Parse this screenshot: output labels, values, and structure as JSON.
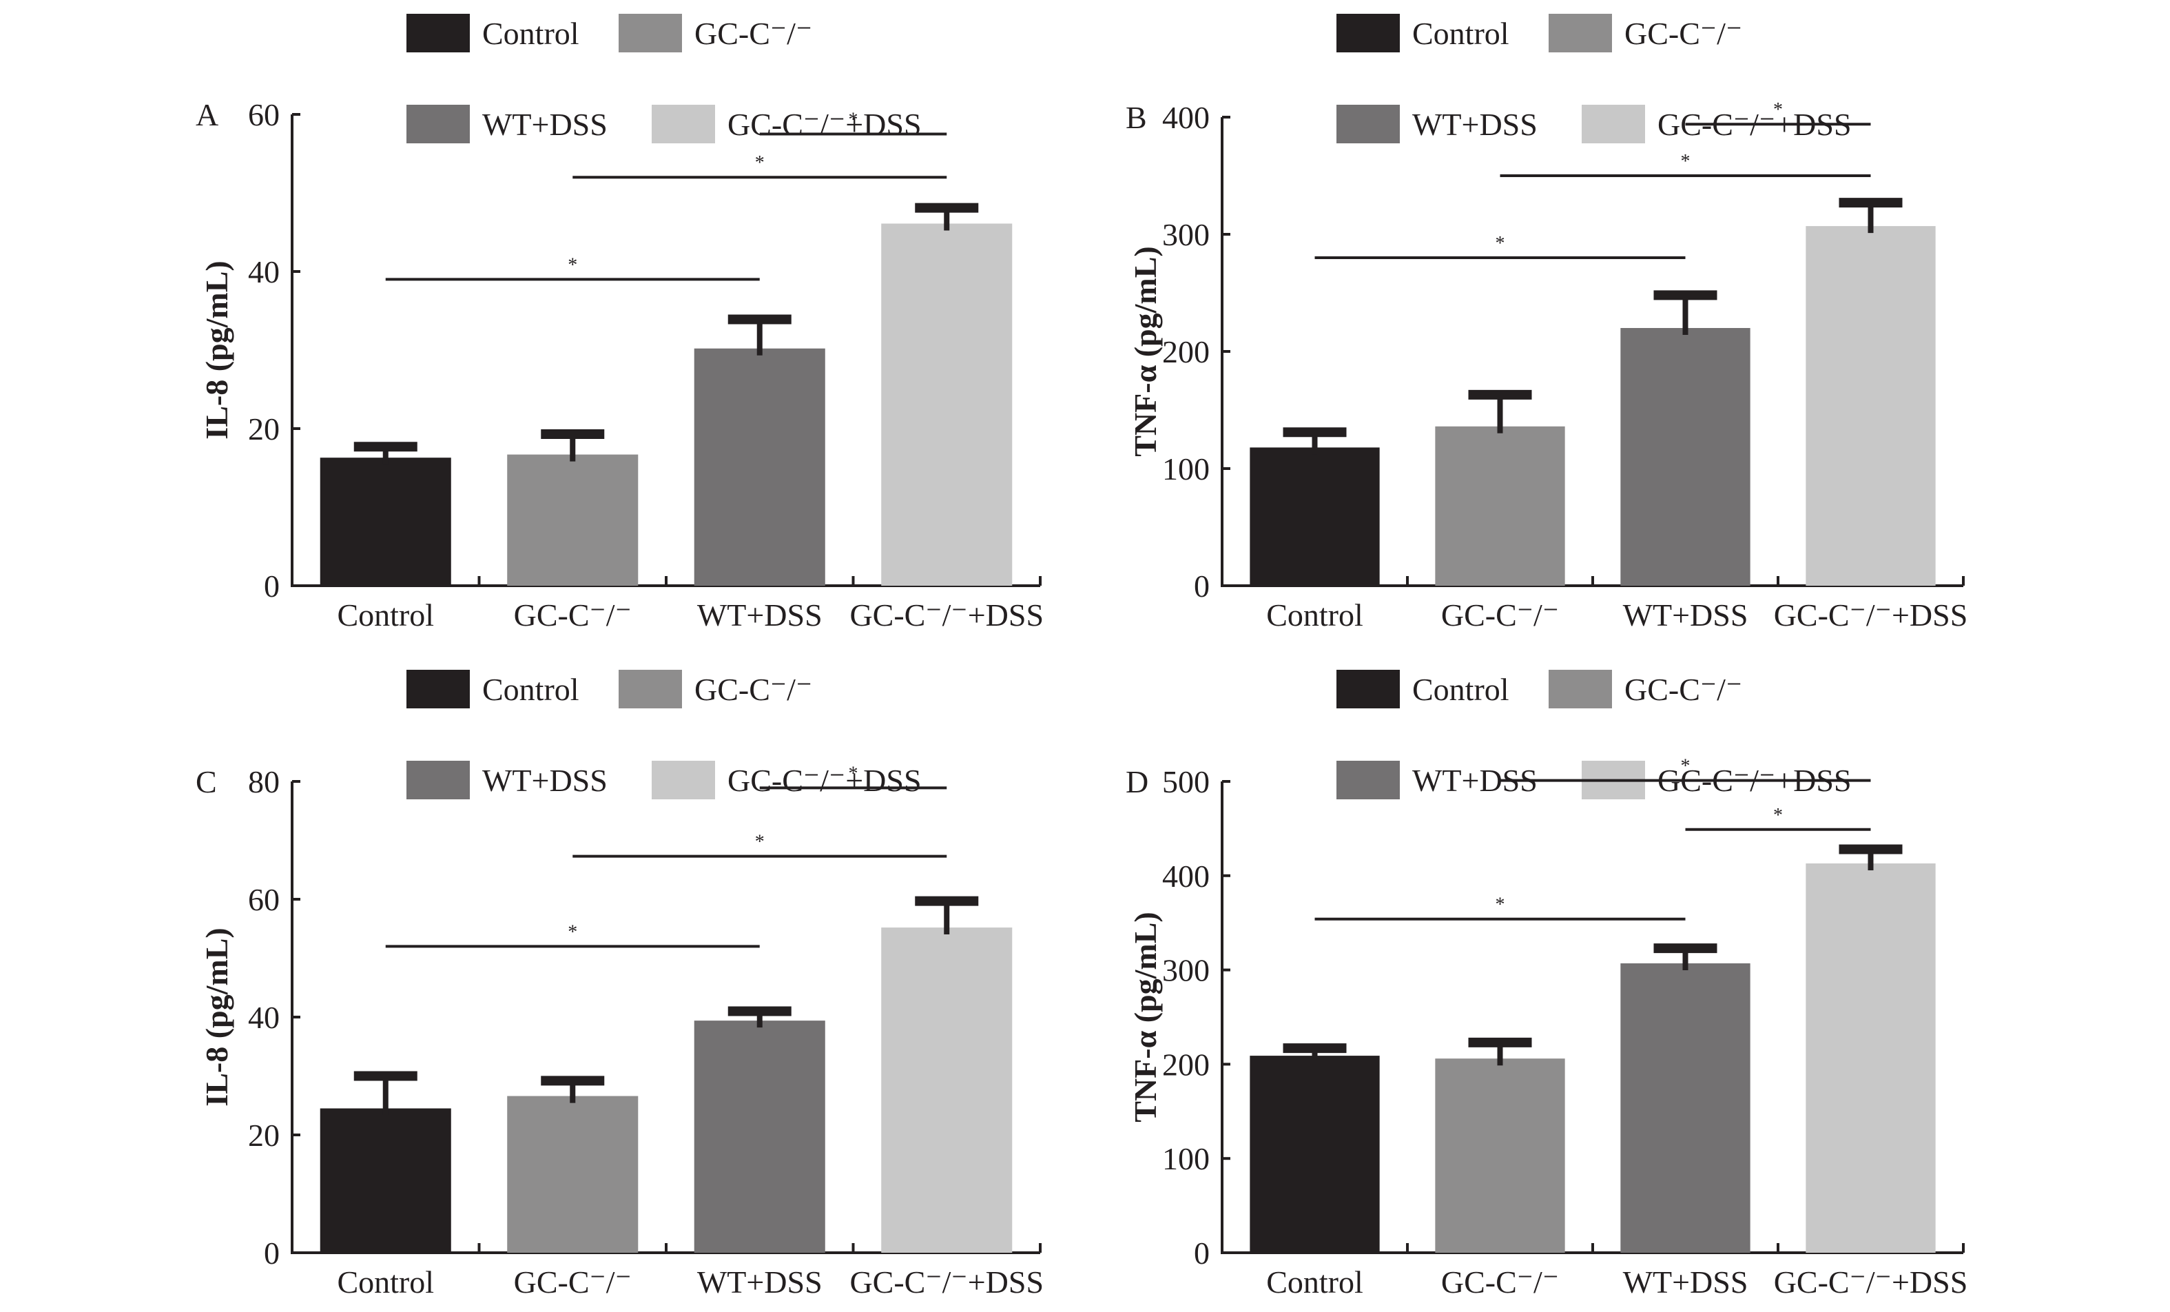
{
  "chart_data": [
    {
      "type": "bar",
      "panel": "A",
      "title": "",
      "xlabel": "",
      "ylabel": "IL-8 (pg/mL)",
      "ylim": [
        0,
        60
      ],
      "yticks": [
        0,
        20,
        40,
        60
      ],
      "grid": false,
      "legend_position": "top",
      "categories": [
        "Control",
        "GC-C⁻/⁻",
        "WT+DSS",
        "GC-C⁻/⁻+DSS"
      ],
      "values": [
        16.3,
        16.7,
        30.2,
        46.1
      ],
      "error": [
        1.4,
        2.6,
        3.7,
        2.0
      ],
      "significance": [
        {
          "from": 0,
          "to": 2,
          "label": "*",
          "y": 39
        },
        {
          "from": 1,
          "to": 3,
          "label": "*",
          "y": 52
        },
        {
          "from": 2,
          "to": 3,
          "label": "*",
          "y": 57.5
        }
      ]
    },
    {
      "type": "bar",
      "panel": "B",
      "title": "",
      "xlabel": "",
      "ylabel": "TNF-α (pg/mL)",
      "ylim": [
        0,
        400
      ],
      "yticks": [
        0,
        100,
        200,
        300,
        400
      ],
      "grid": false,
      "legend_position": "top",
      "categories": [
        "Control",
        "GC-C⁻/⁻",
        "WT+DSS",
        "GC-C⁻/⁻+DSS"
      ],
      "values": [
        118,
        136,
        220,
        307
      ],
      "error": [
        13,
        27,
        28,
        20
      ],
      "significance": [
        {
          "from": 0,
          "to": 2,
          "label": "*",
          "y": 280
        },
        {
          "from": 1,
          "to": 3,
          "label": "*",
          "y": 350
        },
        {
          "from": 2,
          "to": 3,
          "label": "*",
          "y": 394
        }
      ]
    },
    {
      "type": "bar",
      "panel": "C",
      "title": "",
      "xlabel": "",
      "ylabel": "IL-8 (pg/mL)",
      "ylim": [
        0,
        80
      ],
      "yticks": [
        0,
        20,
        40,
        60,
        80
      ],
      "grid": false,
      "legend_position": "top",
      "categories": [
        "Control",
        "GC-C⁻/⁻",
        "WT+DSS",
        "GC-C⁻/⁻+DSS"
      ],
      "values": [
        24.5,
        26.6,
        39.4,
        55.2
      ],
      "error": [
        5.5,
        2.6,
        1.6,
        4.5
      ],
      "significance": [
        {
          "from": 0,
          "to": 2,
          "label": "*",
          "y": 52
        },
        {
          "from": 1,
          "to": 3,
          "label": "*",
          "y": 67.3
        },
        {
          "from": 2,
          "to": 3,
          "label": "*",
          "y": 78.9
        }
      ]
    },
    {
      "type": "bar",
      "panel": "D",
      "title": "",
      "xlabel": "",
      "ylabel": "TNF-α (pg/mL)",
      "ylim": [
        0,
        500
      ],
      "yticks": [
        0,
        100,
        200,
        300,
        400,
        500
      ],
      "grid": false,
      "legend_position": "top",
      "categories": [
        "Control",
        "GC-C⁻/⁻",
        "WT+DSS",
        "GC-C⁻/⁻+DSS"
      ],
      "values": [
        209,
        206,
        307,
        413
      ],
      "error": [
        8,
        17,
        16,
        15
      ],
      "significance": [
        {
          "from": 0,
          "to": 2,
          "label": "*",
          "y": 354
        },
        {
          "from": 1,
          "to": 3,
          "label": "*",
          "y": 501
        },
        {
          "from": 2,
          "to": 3,
          "label": "*",
          "y": 449
        }
      ]
    }
  ],
  "legend": {
    "items": [
      {
        "label": "Control",
        "color": "#231f20"
      },
      {
        "label": "GC-C⁻/⁻",
        "color": "#8e8d8d"
      },
      {
        "label": "WT+DSS",
        "color": "#737172"
      },
      {
        "label": "GC-C⁻/⁻+DSS",
        "color": "#c8c8c8"
      }
    ]
  },
  "bar_colors": [
    "#231f20",
    "#8e8d8d",
    "#737172",
    "#c8c8c8"
  ],
  "ink_color": "#231f20"
}
